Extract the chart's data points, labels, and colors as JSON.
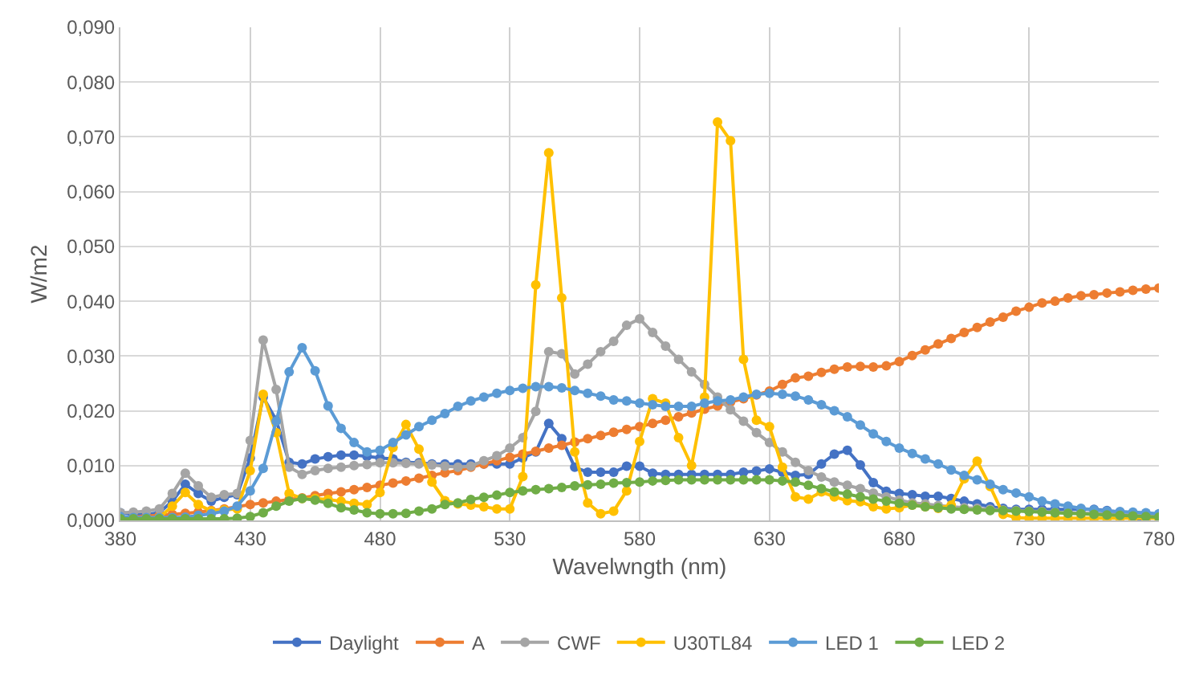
{
  "chart_data": {
    "type": "line",
    "xlabel": "Wavelwngth (nm)",
    "ylabel": "W/m2",
    "x": [
      380,
      385,
      390,
      395,
      400,
      405,
      410,
      415,
      420,
      425,
      430,
      435,
      440,
      445,
      450,
      455,
      460,
      465,
      470,
      475,
      480,
      485,
      490,
      495,
      500,
      505,
      510,
      515,
      520,
      525,
      530,
      535,
      540,
      545,
      550,
      555,
      560,
      565,
      570,
      575,
      580,
      585,
      590,
      595,
      600,
      605,
      610,
      615,
      620,
      625,
      630,
      635,
      640,
      645,
      650,
      655,
      660,
      665,
      670,
      675,
      680,
      685,
      690,
      695,
      700,
      705,
      710,
      715,
      720,
      725,
      730,
      735,
      740,
      745,
      750,
      755,
      760,
      765,
      770,
      775,
      780
    ],
    "series": [
      {
        "name": "Daylight",
        "color": "#4472c4",
        "values": [
          0.0014,
          0.0011,
          0.0011,
          0.0014,
          0.0035,
          0.0066,
          0.0049,
          0.0035,
          0.0042,
          0.0047,
          0.0114,
          0.0225,
          0.0183,
          0.0106,
          0.0103,
          0.0112,
          0.0116,
          0.0119,
          0.0119,
          0.0117,
          0.0114,
          0.0112,
          0.0106,
          0.0105,
          0.0103,
          0.0103,
          0.0103,
          0.0103,
          0.0103,
          0.0103,
          0.0103,
          0.0114,
          0.0125,
          0.0177,
          0.0149,
          0.0097,
          0.0088,
          0.0088,
          0.0088,
          0.0099,
          0.0099,
          0.0086,
          0.0084,
          0.0084,
          0.0084,
          0.0084,
          0.0084,
          0.0084,
          0.0088,
          0.009,
          0.0094,
          0.0088,
          0.0082,
          0.0084,
          0.0103,
          0.0121,
          0.0128,
          0.0101,
          0.0069,
          0.0053,
          0.0049,
          0.0047,
          0.0044,
          0.0044,
          0.004,
          0.0035,
          0.003,
          0.0025,
          0.0022,
          0.002,
          0.002,
          0.002,
          0.002,
          0.002,
          0.002,
          0.002,
          0.0018,
          0.0015,
          0.0003,
          0.0003,
          0.0008
        ]
      },
      {
        "name": "A",
        "color": "#ed7d31",
        "values": [
          0.0005,
          0.0006,
          0.0008,
          0.0009,
          0.0011,
          0.0013,
          0.0015,
          0.0018,
          0.0021,
          0.0025,
          0.0029,
          0.0032,
          0.0035,
          0.0038,
          0.0041,
          0.0045,
          0.0049,
          0.0052,
          0.0056,
          0.006,
          0.0064,
          0.0068,
          0.0072,
          0.0077,
          0.0082,
          0.0087,
          0.0091,
          0.0097,
          0.0103,
          0.0109,
          0.0115,
          0.0121,
          0.0126,
          0.0132,
          0.0137,
          0.0143,
          0.0149,
          0.0155,
          0.0161,
          0.0166,
          0.0171,
          0.0177,
          0.0183,
          0.0189,
          0.0196,
          0.0203,
          0.0209,
          0.0216,
          0.0222,
          0.0229,
          0.0236,
          0.0248,
          0.026,
          0.0263,
          0.027,
          0.0276,
          0.028,
          0.0281,
          0.028,
          0.0282,
          0.029,
          0.0301,
          0.0311,
          0.0322,
          0.0332,
          0.0343,
          0.0352,
          0.0362,
          0.0371,
          0.0382,
          0.0389,
          0.0397,
          0.04,
          0.0406,
          0.041,
          0.0412,
          0.0415,
          0.0417,
          0.042,
          0.0422,
          0.0424
        ]
      },
      {
        "name": "CWF",
        "color": "#a5a5a5",
        "values": [
          0.0014,
          0.0015,
          0.0017,
          0.0021,
          0.0049,
          0.0086,
          0.0063,
          0.0042,
          0.0047,
          0.0049,
          0.0146,
          0.0329,
          0.0239,
          0.0097,
          0.0084,
          0.0091,
          0.0095,
          0.0097,
          0.01,
          0.0102,
          0.0105,
          0.0105,
          0.0104,
          0.0103,
          0.0101,
          0.0099,
          0.0097,
          0.0099,
          0.0109,
          0.0118,
          0.0132,
          0.0151,
          0.0199,
          0.0308,
          0.0304,
          0.0267,
          0.0285,
          0.0308,
          0.0327,
          0.0356,
          0.0368,
          0.0343,
          0.0318,
          0.0294,
          0.0271,
          0.0248,
          0.0225,
          0.0202,
          0.0181,
          0.016,
          0.0142,
          0.0125,
          0.0106,
          0.0091,
          0.0079,
          0.007,
          0.0064,
          0.0058,
          0.005,
          0.0043,
          0.0037,
          0.0032,
          0.003,
          0.0027,
          0.0025,
          0.0023,
          0.0022,
          0.002,
          0.0019,
          0.0018,
          0.0017,
          0.0016,
          0.0015,
          0.0014,
          0.0013,
          0.0013,
          0.0012,
          0.0012,
          0.0012,
          0.0011,
          0.0011
        ]
      },
      {
        "name": "U30TL84",
        "color": "#ffc000",
        "values": [
          null,
          null,
          0.0003,
          0.0005,
          0.0026,
          0.0051,
          0.0029,
          0.0017,
          0.0019,
          0.0021,
          0.0091,
          0.023,
          0.016,
          0.0049,
          0.004,
          0.004,
          0.0038,
          0.0035,
          0.0031,
          0.0029,
          0.0051,
          0.0133,
          0.0175,
          0.013,
          0.007,
          0.0036,
          0.003,
          0.0028,
          0.0025,
          0.0021,
          0.0021,
          0.008,
          0.043,
          0.0671,
          0.0406,
          0.0125,
          0.0032,
          0.0012,
          0.0017,
          0.0054,
          0.0144,
          0.0222,
          0.0214,
          0.0151,
          0.01,
          0.0225,
          0.0727,
          0.0693,
          0.0294,
          0.0183,
          0.0171,
          0.0097,
          0.0043,
          0.0039,
          0.0052,
          0.0043,
          0.0036,
          0.0034,
          0.0025,
          0.0021,
          0.0023,
          0.0028,
          0.0025,
          0.0022,
          0.0028,
          0.0076,
          0.0108,
          0.0062,
          0.0011,
          0.0005,
          0.0004,
          0.0004,
          0.0004,
          0.0004,
          0.0004,
          0.0004,
          0.0004,
          0.0004,
          0.0004,
          0.0004,
          0.0004
        ]
      },
      {
        "name": "LED 1",
        "color": "#5b9bd5",
        "values": [
          0.0007,
          0.0005,
          0.0005,
          0.0005,
          0.0005,
          0.0006,
          0.0009,
          0.0012,
          0.0017,
          0.0026,
          0.0054,
          0.0095,
          0.0181,
          0.0271,
          0.0315,
          0.0273,
          0.0209,
          0.0168,
          0.0142,
          0.0125,
          0.0128,
          0.0142,
          0.0156,
          0.0171,
          0.0183,
          0.0195,
          0.0208,
          0.0218,
          0.0225,
          0.0232,
          0.0237,
          0.0241,
          0.0244,
          0.0244,
          0.0242,
          0.0237,
          0.0232,
          0.0227,
          0.022,
          0.0218,
          0.0214,
          0.0211,
          0.0208,
          0.0208,
          0.0208,
          0.0214,
          0.0218,
          0.022,
          0.0225,
          0.023,
          0.0232,
          0.023,
          0.0227,
          0.022,
          0.0211,
          0.02,
          0.0189,
          0.0174,
          0.0158,
          0.0144,
          0.0132,
          0.0122,
          0.0112,
          0.0103,
          0.0092,
          0.0082,
          0.0074,
          0.0066,
          0.0056,
          0.005,
          0.0043,
          0.0035,
          0.003,
          0.0026,
          0.0022,
          0.0019,
          0.0017,
          0.0016,
          0.0015,
          0.0014,
          0.0012
        ]
      },
      {
        "name": "LED 2",
        "color": "#70ad47",
        "values": [
          0.0003,
          0.0003,
          0.0003,
          0.0003,
          0.0003,
          0.0003,
          0.0003,
          0.0003,
          0.0003,
          0.0004,
          0.0007,
          0.0014,
          0.0026,
          0.0035,
          0.004,
          0.0037,
          0.0031,
          0.0023,
          0.0019,
          0.0014,
          0.0012,
          0.0012,
          0.0013,
          0.0017,
          0.0021,
          0.0029,
          0.0032,
          0.0038,
          0.0042,
          0.0046,
          0.0051,
          0.0054,
          0.0056,
          0.0058,
          0.006,
          0.0063,
          0.0065,
          0.0066,
          0.0068,
          0.0069,
          0.007,
          0.0072,
          0.0073,
          0.0074,
          0.0074,
          0.0074,
          0.0074,
          0.0074,
          0.0074,
          0.0074,
          0.0074,
          0.0072,
          0.007,
          0.0064,
          0.0058,
          0.0052,
          0.0048,
          0.0043,
          0.0039,
          0.0035,
          0.0031,
          0.0028,
          0.0025,
          0.0023,
          0.0021,
          0.002,
          0.0019,
          0.0018,
          0.0018,
          0.0017,
          0.0016,
          0.0015,
          0.0014,
          0.0013,
          0.0012,
          0.0011,
          0.001,
          0.0009,
          0.0008,
          0.0007,
          0.0006
        ]
      }
    ],
    "xlim": [
      380,
      780
    ],
    "xticks": [
      380,
      430,
      480,
      530,
      580,
      630,
      680,
      730,
      780
    ],
    "ylim": [
      0,
      0.09
    ],
    "yticks": [
      {
        "value": 0,
        "label": "0,000"
      },
      {
        "value": 0.01,
        "label": "0,010"
      },
      {
        "value": 0.02,
        "label": "0,020"
      },
      {
        "value": 0.03,
        "label": "0,030"
      },
      {
        "value": 0.04,
        "label": "0,040"
      },
      {
        "value": 0.05,
        "label": "0,050"
      },
      {
        "value": 0.06,
        "label": "0,060"
      },
      {
        "value": 0.07,
        "label": "0,070"
      },
      {
        "value": 0.08,
        "label": "0,080"
      },
      {
        "value": 0.09,
        "label": "0,090"
      }
    ],
    "grid": true,
    "legend": "bottom",
    "marker": "circle",
    "line_style": "solid"
  }
}
